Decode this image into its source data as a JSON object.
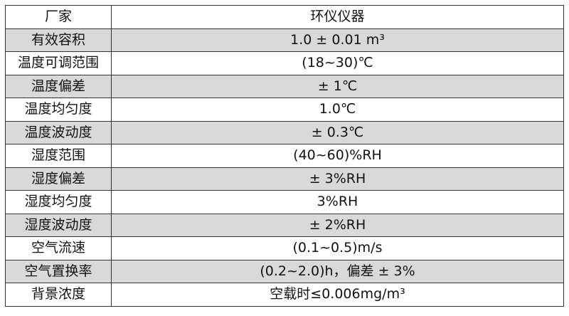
{
  "table": {
    "rows": [
      {
        "label": "厂家",
        "value": "环仪仪器"
      },
      {
        "label": "有效容积",
        "value": "1.0 ± 0.01 m³"
      },
      {
        "label": "温度可调范围",
        "value": "(18~30)℃"
      },
      {
        "label": "温度偏差",
        "value": "± 1℃"
      },
      {
        "label": "温度均匀度",
        "value": "1.0℃"
      },
      {
        "label": "温度波动度",
        "value": "± 0.3℃"
      },
      {
        "label": "湿度范围",
        "value": "(40~60)%RH"
      },
      {
        "label": "湿度偏差",
        "value": "± 3%RH"
      },
      {
        "label": "湿度均匀度",
        "value": "3%RH"
      },
      {
        "label": "湿度波动度",
        "value": "± 2%RH"
      },
      {
        "label": "空气流速",
        "value": "(0.1~0.5)m/s"
      },
      {
        "label": "空气置换率",
        "value": "(0.2~2.0)h，偏差 ± 3%"
      },
      {
        "label": "背景浓度",
        "value": "空载时≤0.006mg/m³"
      }
    ],
    "stripe_color": "#d9d9d9"
  }
}
